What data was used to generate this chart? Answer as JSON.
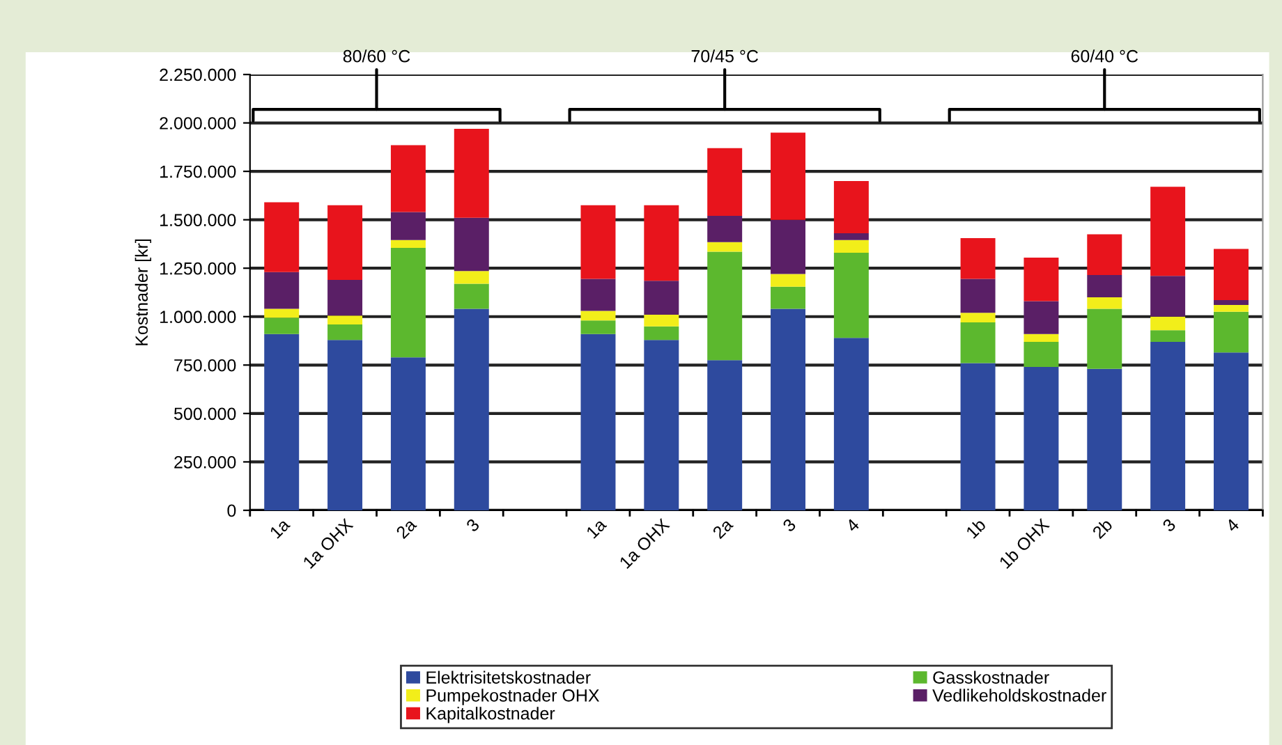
{
  "chart_data": {
    "type": "bar",
    "stacked": true,
    "ylabel": "Kostnader [kr]",
    "categories": [
      "1a",
      "1a OHX",
      "2a",
      "3",
      null,
      "1a",
      "1a OHX",
      "2a",
      "3",
      "4",
      null,
      "1b",
      "1b OHX",
      "2b",
      "3",
      "4"
    ],
    "series": [
      {
        "name": "Elektrisitetskostnader",
        "color": "#2e4a9e",
        "values": [
          910000,
          880000,
          790000,
          1040000,
          null,
          910000,
          880000,
          775000,
          1040000,
          890000,
          null,
          760000,
          740000,
          730000,
          870000,
          815000
        ]
      },
      {
        "name": "Gasskostnader",
        "color": "#5cb82e",
        "values": [
          85000,
          80000,
          565000,
          130000,
          null,
          70000,
          70000,
          560000,
          115000,
          440000,
          null,
          210000,
          130000,
          310000,
          60000,
          210000
        ]
      },
      {
        "name": "Pumpekostnader OHX",
        "color": "#f2ee1a",
        "values": [
          45000,
          45000,
          40000,
          65000,
          null,
          50000,
          60000,
          50000,
          65000,
          65000,
          null,
          50000,
          40000,
          60000,
          70000,
          35000
        ]
      },
      {
        "name": "Vedlikeholdskostnader",
        "color": "#5a1f66",
        "values": [
          190000,
          185000,
          145000,
          275000,
          null,
          165000,
          175000,
          135000,
          280000,
          35000,
          null,
          175000,
          170000,
          115000,
          210000,
          25000
        ]
      },
      {
        "name": "Kapitalkostnader",
        "color": "#e8141c",
        "values": [
          360000,
          385000,
          345000,
          460000,
          null,
          380000,
          390000,
          350000,
          450000,
          270000,
          null,
          210000,
          225000,
          210000,
          460000,
          265000
        ]
      }
    ],
    "ylim": [
      0,
      2250000
    ],
    "yticks": [
      0,
      {
        "value": 250000,
        "label": "250.000"
      },
      {
        "value": 500000,
        "label": "500.000"
      },
      {
        "value": 750000,
        "label": "750.000"
      },
      {
        "value": 1000000,
        "label": "1.000.000"
      },
      {
        "value": 1250000,
        "label": "1.250.000"
      },
      {
        "value": 1500000,
        "label": "1.500.000"
      },
      {
        "value": 1750000,
        "label": "1.750.000"
      },
      {
        "value": 2000000,
        "label": "2.000.000"
      },
      {
        "value": 2250000,
        "label": "2.250.000"
      }
    ],
    "annotations": [
      "80/60 °C",
      "70/45 °C",
      "60/40 °C"
    ],
    "grid": "y",
    "legend": "bottom"
  }
}
